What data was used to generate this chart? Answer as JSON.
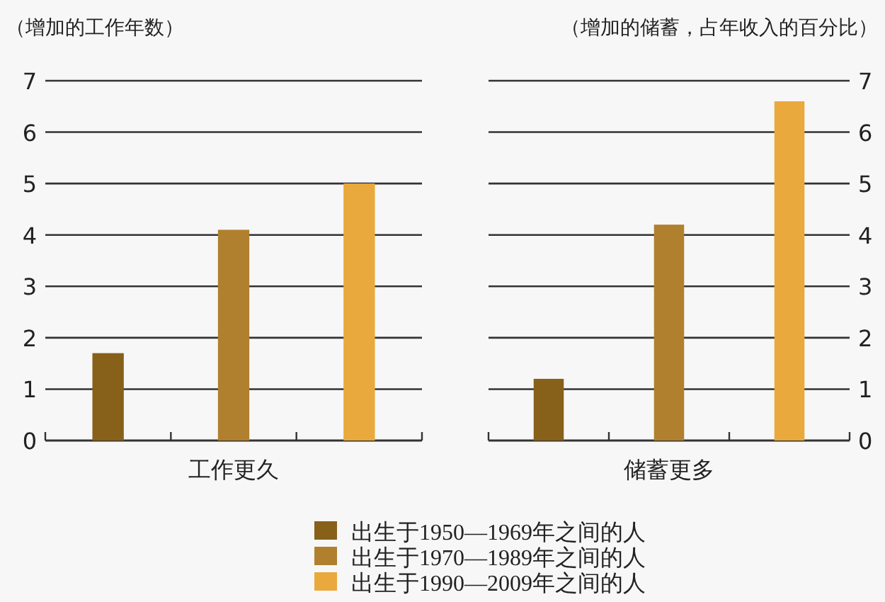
{
  "chart_data": [
    {
      "type": "bar",
      "stacked": true,
      "xlabel": "工作更久",
      "ylabel": "（增加的工作年数）",
      "categories": [
        null,
        null,
        null
      ],
      "ylim": [
        0,
        7
      ],
      "yticks": [
        0,
        1,
        2,
        3,
        4,
        5,
        6,
        7
      ],
      "grid": "y",
      "legend": "bottom",
      "series": [
        {
          "name": "出生于1950—1969年之间的人",
          "color": "#87601a",
          "values": [
            1.7,
            null,
            null
          ]
        },
        {
          "name": "出生于1970—1989年之间的人",
          "color": "#b0802e",
          "values": [
            null,
            4.1,
            null
          ]
        },
        {
          "name": "出生于1990—2009年之间的人",
          "color": "#e9a93c",
          "values": [
            null,
            null,
            5.0
          ]
        }
      ]
    },
    {
      "type": "bar",
      "stacked": true,
      "xlabel": "储蓄更多",
      "ylabel": "（增加的储蓄，占年收入的百分比）",
      "categories": [
        null,
        null,
        null
      ],
      "ylim": [
        0,
        7
      ],
      "yticks": [
        0,
        1,
        2,
        3,
        4,
        5,
        6,
        7
      ],
      "grid": "y",
      "series": [
        {
          "color": "#87601a",
          "values": [
            1.2,
            null,
            null
          ]
        },
        {
          "color": "#b0802e",
          "values": [
            null,
            4.2,
            null
          ]
        },
        {
          "color": "#e9a93c",
          "values": [
            null,
            null,
            6.6
          ]
        }
      ]
    }
  ]
}
